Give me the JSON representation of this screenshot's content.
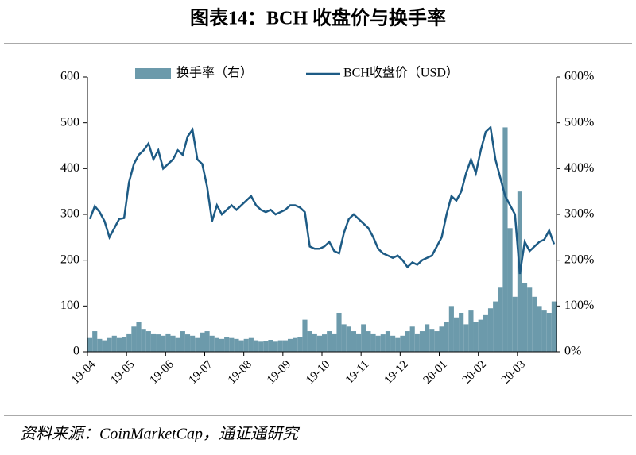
{
  "chart_data": {
    "type": "bar-line",
    "title": "图表14：BCH 收盘价与换手率",
    "source": "资料来源：CoinMarketCap，通证通研究",
    "categories": [
      "19-04",
      null,
      null,
      null,
      null,
      null,
      null,
      null,
      "19-05",
      null,
      null,
      null,
      null,
      null,
      null,
      null,
      "19-06",
      null,
      null,
      null,
      null,
      null,
      null,
      null,
      "19-07",
      null,
      null,
      null,
      null,
      null,
      null,
      null,
      "19-08",
      null,
      null,
      null,
      null,
      null,
      null,
      null,
      "19-09",
      null,
      null,
      null,
      null,
      null,
      null,
      null,
      "19-10",
      null,
      null,
      null,
      null,
      null,
      null,
      null,
      "19-11",
      null,
      null,
      null,
      null,
      null,
      null,
      null,
      "19-12",
      null,
      null,
      null,
      null,
      null,
      null,
      null,
      "20-01",
      null,
      null,
      null,
      null,
      null,
      null,
      null,
      "20-02",
      null,
      null,
      null,
      null,
      null,
      null,
      null,
      "20-03",
      null,
      null,
      null,
      null,
      null,
      null,
      null
    ],
    "series": [
      {
        "name": "换手率（右）",
        "color": "#6c9aab",
        "axis": "y2",
        "kind": "bar",
        "values": [
          30,
          45,
          28,
          25,
          30,
          35,
          30,
          32,
          40,
          55,
          65,
          50,
          45,
          40,
          38,
          35,
          40,
          35,
          30,
          45,
          38,
          35,
          30,
          42,
          45,
          35,
          30,
          28,
          32,
          30,
          28,
          25,
          28,
          30,
          25,
          22,
          24,
          26,
          22,
          25,
          25,
          28,
          30,
          32,
          70,
          45,
          40,
          35,
          38,
          45,
          40,
          85,
          60,
          55,
          45,
          40,
          60,
          45,
          40,
          35,
          38,
          45,
          35,
          30,
          35,
          45,
          55,
          40,
          45,
          60,
          50,
          45,
          55,
          65,
          100,
          75,
          85,
          60,
          90,
          65,
          70,
          80,
          95,
          110,
          140,
          490,
          270,
          120,
          350,
          150,
          140,
          120,
          100,
          90,
          85,
          110
        ]
      },
      {
        "name": "BCH收盘价（USD）",
        "color": "#1d5b85",
        "kind": "line",
        "values": [
          290,
          318,
          305,
          285,
          250,
          270,
          290,
          292,
          370,
          410,
          430,
          440,
          455,
          420,
          440,
          400,
          410,
          420,
          440,
          430,
          470,
          485,
          420,
          410,
          360,
          285,
          320,
          300,
          310,
          320,
          310,
          320,
          330,
          340,
          320,
          310,
          305,
          310,
          300,
          305,
          310,
          320,
          320,
          315,
          305,
          230,
          225,
          225,
          230,
          240,
          220,
          215,
          260,
          290,
          300,
          290,
          280,
          270,
          250,
          225,
          215,
          210,
          205,
          210,
          200,
          185,
          195,
          190,
          200,
          205,
          210,
          230,
          250,
          300,
          340,
          330,
          350,
          390,
          420,
          390,
          440,
          480,
          490,
          420,
          380,
          340,
          320,
          300,
          170,
          240,
          220,
          230,
          240,
          245,
          265,
          235
        ]
      }
    ],
    "ylim": [
      0,
      600
    ],
    "yticks": [
      0,
      100,
      200,
      300,
      400,
      500,
      600
    ],
    "y2lim": [
      0,
      600
    ],
    "y2ticks": [
      {
        "value": 0,
        "label": "0%"
      },
      {
        "value": 100,
        "label": "100%"
      },
      {
        "value": 200,
        "label": "200%"
      },
      {
        "value": 300,
        "label": "300%"
      },
      {
        "value": 400,
        "label": "400%"
      },
      {
        "value": 500,
        "label": "500%"
      },
      {
        "value": 600,
        "label": "600%"
      }
    ]
  }
}
